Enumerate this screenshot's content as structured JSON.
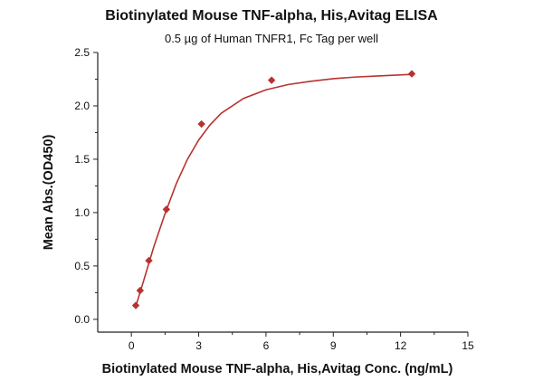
{
  "chart_data": {
    "type": "scatter",
    "title": "Biotinylated Mouse TNF-alpha, His,Avitag ELISA",
    "subtitle": "0.5 µg of Human TNFR1, Fc Tag per well",
    "xlabel": "Biotinylated Mouse TNF-alpha, His,Avitag Conc. (ng/mL)",
    "ylabel": "Mean Abs.(OD450)",
    "xlim": [
      -1.5,
      15
    ],
    "ylim": [
      -0.12,
      2.5
    ],
    "xticks": [
      "0",
      "3",
      "6",
      "9",
      "12",
      "15"
    ],
    "yticks": [
      "0.0",
      "0.5",
      "1.0",
      "1.5",
      "2.0",
      "2.5"
    ],
    "grid": false,
    "marker_color": "#b83232",
    "line_color": "#b83232",
    "series": [
      {
        "x": [
          0.195,
          0.39,
          0.78,
          1.56,
          3.125,
          6.25,
          12.5
        ],
        "y": [
          0.13,
          0.27,
          0.55,
          1.03,
          1.83,
          2.24,
          2.3
        ]
      }
    ],
    "fit": {
      "x": [
        0.195,
        0.5,
        1.0,
        1.5,
        2.0,
        2.5,
        3.0,
        3.5,
        4.0,
        5.0,
        6.0,
        7.0,
        8.0,
        9.0,
        10.0,
        11.0,
        12.5
      ],
      "y": [
        0.12,
        0.33,
        0.68,
        0.99,
        1.27,
        1.5,
        1.68,
        1.82,
        1.93,
        2.07,
        2.15,
        2.2,
        2.23,
        2.255,
        2.27,
        2.28,
        2.295
      ]
    }
  }
}
